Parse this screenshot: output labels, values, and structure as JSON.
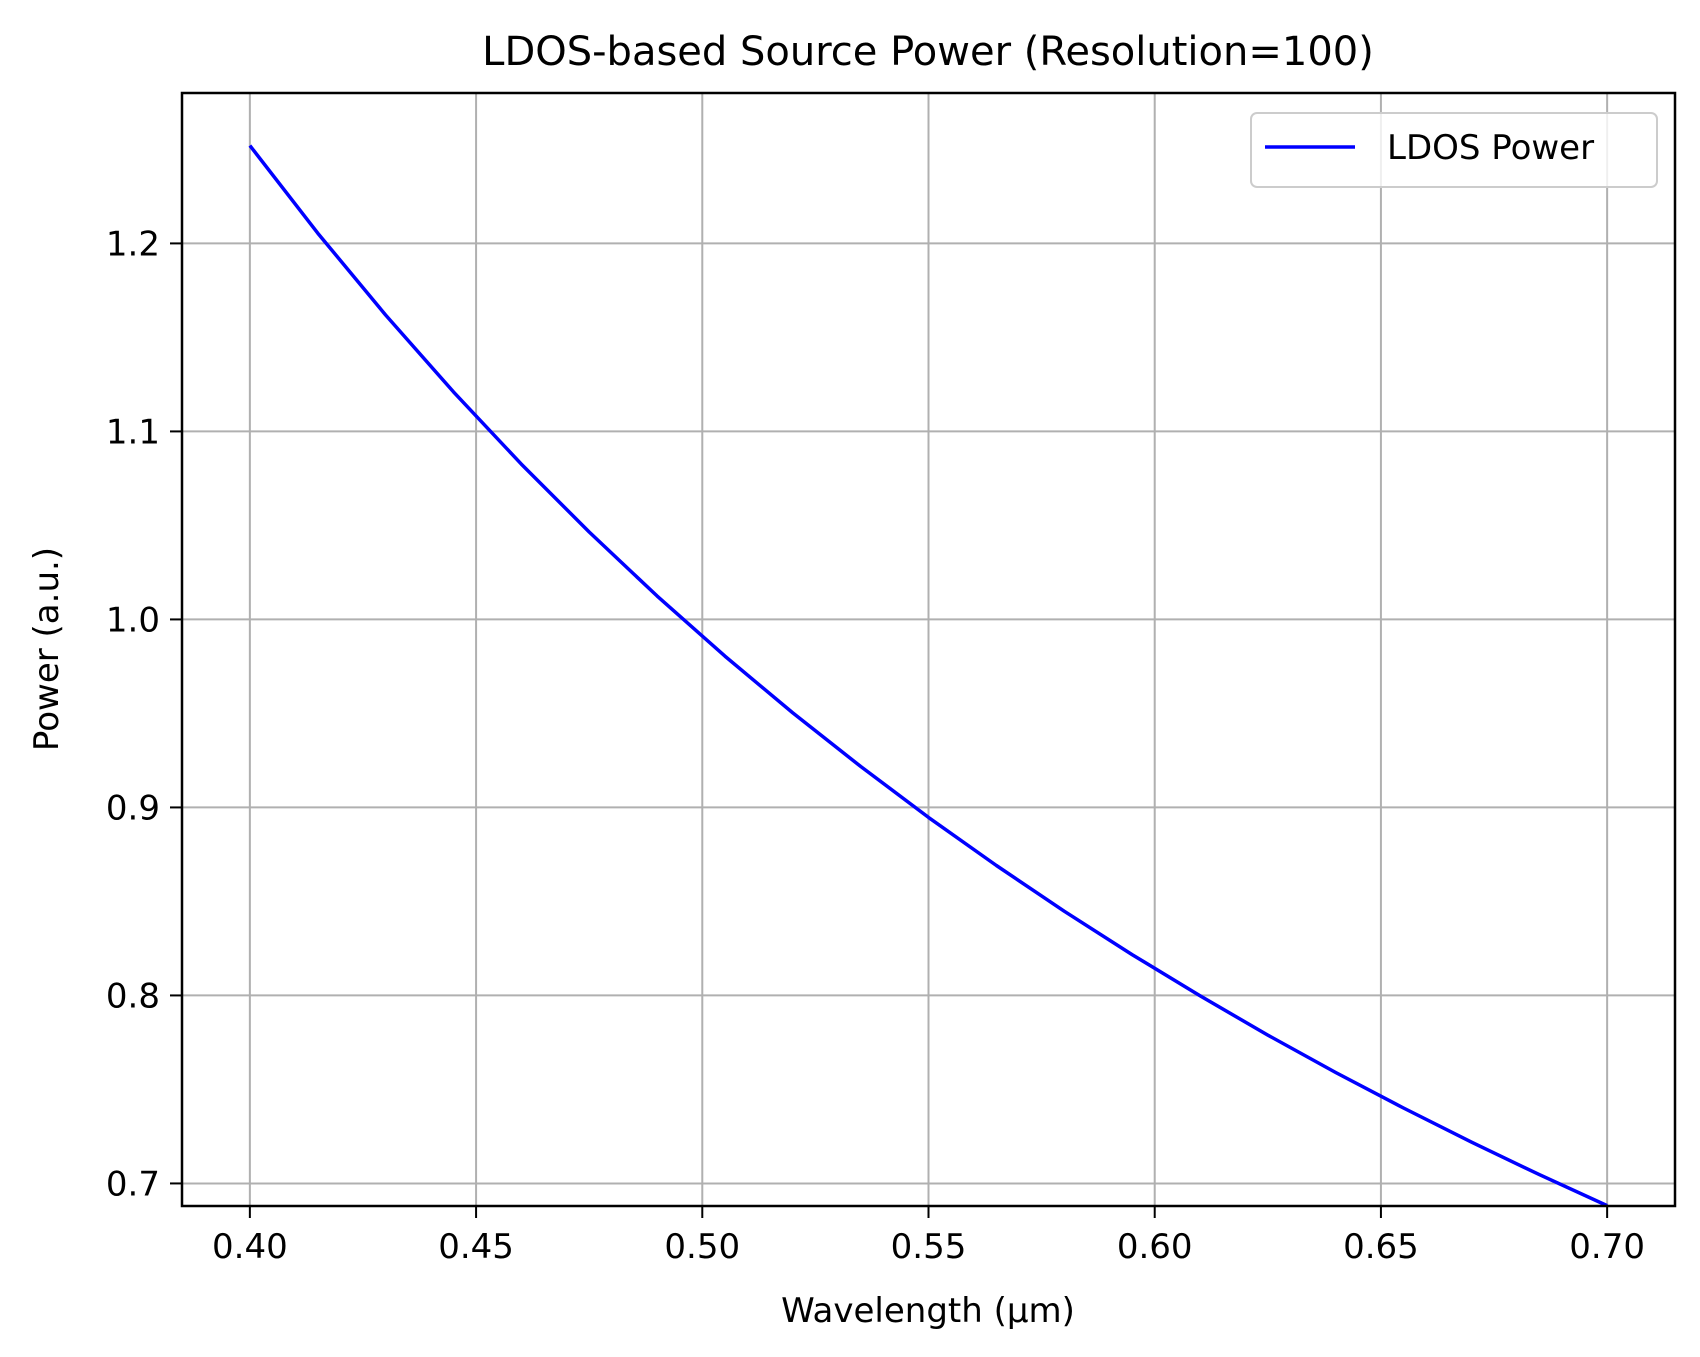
{
  "chart_data": {
    "type": "line",
    "title": "LDOS-based Source Power (Resolution=100)",
    "xlabel": "Wavelength (µm)",
    "ylabel": "Power (a.u.)",
    "xlim": [
      0.385,
      0.715
    ],
    "ylim": [
      0.688,
      1.28
    ],
    "xticks": [
      0.4,
      0.45,
      0.5,
      0.55,
      0.6,
      0.65,
      0.7
    ],
    "xtick_labels": [
      "0.40",
      "0.45",
      "0.50",
      "0.55",
      "0.60",
      "0.65",
      "0.70"
    ],
    "yticks": [
      0.7,
      0.8,
      0.9,
      1.0,
      1.1,
      1.2
    ],
    "ytick_labels": [
      "0.7",
      "0.8",
      "0.9",
      "1.0",
      "1.1",
      "1.2"
    ],
    "grid": true,
    "legend_position": "top-right",
    "series": [
      {
        "name": "LDOS Power",
        "color": "#0000ff",
        "x": [
          0.4,
          0.415,
          0.43,
          0.445,
          0.46,
          0.475,
          0.49,
          0.505,
          0.52,
          0.535,
          0.55,
          0.565,
          0.58,
          0.595,
          0.61,
          0.625,
          0.64,
          0.655,
          0.67,
          0.685,
          0.7
        ],
        "y": [
          1.252,
          1.2055,
          1.1619,
          1.121,
          1.0826,
          1.0465,
          1.0125,
          0.9805,
          0.9503,
          0.9218,
          0.8947,
          0.8691,
          0.8448,
          0.8217,
          0.7998,
          0.7789,
          0.759,
          0.7401,
          0.722,
          0.7047,
          0.6882
        ]
      }
    ]
  }
}
